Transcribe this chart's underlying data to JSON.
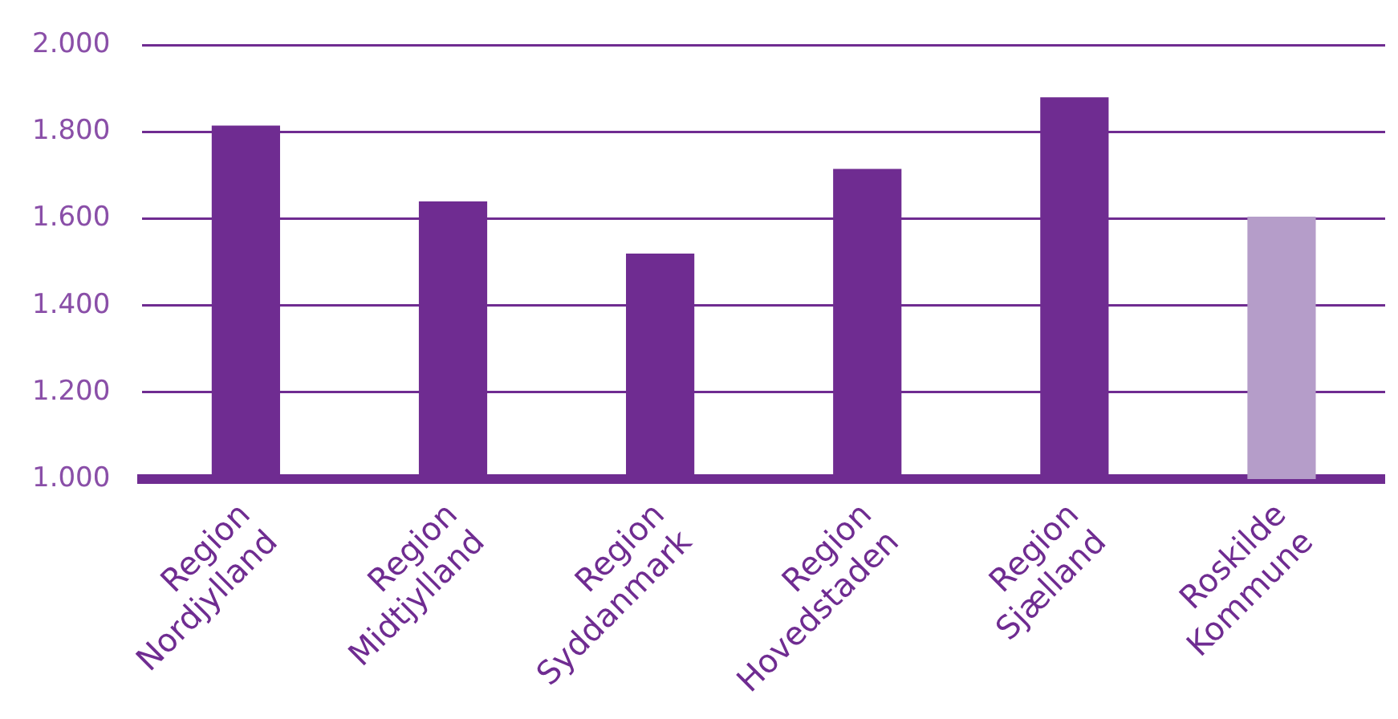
{
  "chart_data": {
    "type": "bar",
    "categories": [
      "Region Nordjylland",
      "Region Midtjylland",
      "Region Syddanmark",
      "Region Hovedstaden",
      "Region Sjælland",
      "Roskilde Kommune"
    ],
    "values": [
      1815,
      1640,
      1520,
      1715,
      1880,
      1605
    ],
    "colors": [
      "#6f2c91",
      "#6f2c91",
      "#6f2c91",
      "#6f2c91",
      "#6f2c91",
      "#b59dc9"
    ],
    "ylim": [
      1000,
      2000
    ],
    "yticks": [
      {
        "value": 1000,
        "label": "1.000"
      },
      {
        "value": 1200,
        "label": "1.200"
      },
      {
        "value": 1400,
        "label": "1.400"
      },
      {
        "value": 1600,
        "label": "1.600"
      },
      {
        "value": 1800,
        "label": "1.800"
      },
      {
        "value": 2000,
        "label": "2.000"
      }
    ],
    "grid": "y",
    "legend": false
  }
}
